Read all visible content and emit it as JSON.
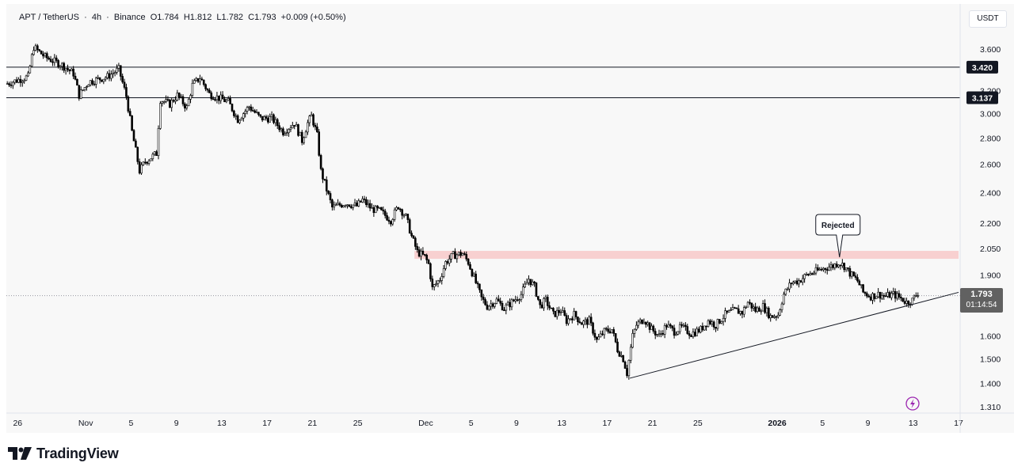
{
  "header": {
    "symbol": "APT / TetherUS",
    "interval": "4h",
    "exchange": "Binance",
    "open": "O1.784",
    "high": "H1.812",
    "low": "L1.782",
    "close": "C1.793",
    "change": "+0.009 (+0.50%)",
    "separator": "·"
  },
  "currency_button": "USDT",
  "last_price": "1.793",
  "countdown": "01:14:54",
  "brand": "TradingView",
  "annotation": "Rejected",
  "colors": {
    "up": "#000000",
    "down": "#000000",
    "zone_fill": "#f8c9c9",
    "background": "#f8f8f8",
    "price_tag": "#616161",
    "level_tag": "#131722",
    "axis_text": "#131722",
    "accent_icon": "#9c27b0"
  },
  "chart_data": {
    "type": "candlestick",
    "symbol": "APT / TetherUS",
    "interval": "4h",
    "exchange": "Binance",
    "y_scale": "log",
    "ylim": [
      1.28,
      3.85
    ],
    "y_ticks": [
      3.6,
      3.2,
      3.0,
      2.8,
      2.6,
      2.4,
      2.2,
      2.05,
      1.9,
      1.6,
      1.5,
      1.4,
      1.31
    ],
    "y_tick_labels": [
      "3.600",
      "3.200",
      "3.000",
      "2.800",
      "2.600",
      "2.400",
      "2.200",
      "2.050",
      "1.900",
      "1.600",
      "1.500",
      "1.400",
      "1.310"
    ],
    "x_ticks": [
      {
        "date": "2025-10-26",
        "label": "26",
        "bold": false
      },
      {
        "date": "2025-11-01",
        "label": "Nov",
        "bold": false
      },
      {
        "date": "2025-11-05",
        "label": "5",
        "bold": false
      },
      {
        "date": "2025-11-09",
        "label": "9",
        "bold": false
      },
      {
        "date": "2025-11-13",
        "label": "13",
        "bold": false
      },
      {
        "date": "2025-11-17",
        "label": "17",
        "bold": false
      },
      {
        "date": "2025-11-21",
        "label": "21",
        "bold": false
      },
      {
        "date": "2025-11-25",
        "label": "25",
        "bold": false
      },
      {
        "date": "2025-12-01",
        "label": "Dec",
        "bold": false
      },
      {
        "date": "2025-12-05",
        "label": "5",
        "bold": false
      },
      {
        "date": "2025-12-09",
        "label": "9",
        "bold": false
      },
      {
        "date": "2025-12-13",
        "label": "13",
        "bold": false
      },
      {
        "date": "2025-12-17",
        "label": "17",
        "bold": false
      },
      {
        "date": "2025-12-21",
        "label": "21",
        "bold": false
      },
      {
        "date": "2025-12-25",
        "label": "25",
        "bold": false
      },
      {
        "date": "2026-01-01",
        "label": "2026",
        "bold": true
      },
      {
        "date": "2026-01-05",
        "label": "5",
        "bold": false
      },
      {
        "date": "2026-01-09",
        "label": "9",
        "bold": false
      },
      {
        "date": "2026-01-13",
        "label": "13",
        "bold": false
      },
      {
        "date": "2026-01-17",
        "label": "17",
        "bold": false
      }
    ],
    "x_range": [
      "2025-10-25T00:00",
      "2026-01-17T00:00"
    ],
    "candle_interval_hours": 4,
    "price_path": [
      [
        "2025-10-25T00:00",
        3.26
      ],
      [
        "2025-10-27T00:00",
        3.33
      ],
      [
        "2025-10-27T12:00",
        3.62
      ],
      [
        "2025-10-28T12:00",
        3.52
      ],
      [
        "2025-10-30T00:00",
        3.44
      ],
      [
        "2025-10-31T00:00",
        3.36
      ],
      [
        "2025-10-31T12:00",
        3.16
      ],
      [
        "2025-11-01T08:00",
        3.28
      ],
      [
        "2025-11-03T00:00",
        3.33
      ],
      [
        "2025-11-04T00:00",
        3.4
      ],
      [
        "2025-11-04T16:00",
        3.15
      ],
      [
        "2025-11-05T04:00",
        2.85
      ],
      [
        "2025-11-05T20:00",
        2.55
      ],
      [
        "2025-11-06T08:00",
        2.62
      ],
      [
        "2025-11-07T08:00",
        2.68
      ],
      [
        "2025-11-07T16:00",
        3.12
      ],
      [
        "2025-11-08T12:00",
        3.08
      ],
      [
        "2025-11-09T04:00",
        3.16
      ],
      [
        "2025-11-10T00:00",
        3.05
      ],
      [
        "2025-11-10T12:00",
        3.25
      ],
      [
        "2025-11-11T04:00",
        3.32
      ],
      [
        "2025-11-12T00:00",
        3.17
      ],
      [
        "2025-11-13T16:00",
        3.1
      ],
      [
        "2025-11-14T12:00",
        2.95
      ],
      [
        "2025-11-15T12:00",
        3.06
      ],
      [
        "2025-11-16T12:00",
        2.96
      ],
      [
        "2025-11-17T12:00",
        2.96
      ],
      [
        "2025-11-18T12:00",
        2.85
      ],
      [
        "2025-11-19T12:00",
        2.92
      ],
      [
        "2025-11-20T04:00",
        2.78
      ],
      [
        "2025-11-20T16:00",
        2.92
      ],
      [
        "2025-11-21T00:00",
        2.98
      ],
      [
        "2025-11-21T12:00",
        2.82
      ],
      [
        "2025-11-21T20:00",
        2.55
      ],
      [
        "2025-11-22T08:00",
        2.42
      ],
      [
        "2025-11-22T20:00",
        2.3
      ],
      [
        "2025-11-24T00:00",
        2.33
      ],
      [
        "2025-11-25T00:00",
        2.31
      ],
      [
        "2025-11-25T12:00",
        2.35
      ],
      [
        "2025-11-26T08:00",
        2.29
      ],
      [
        "2025-11-27T00:00",
        2.28
      ],
      [
        "2025-11-28T00:00",
        2.22
      ],
      [
        "2025-11-28T16:00",
        2.31
      ],
      [
        "2025-11-29T08:00",
        2.24
      ],
      [
        "2025-11-29T20:00",
        2.12
      ],
      [
        "2025-11-30T08:00",
        2.03
      ],
      [
        "2025-12-01T00:00",
        2.0
      ],
      [
        "2025-12-01T08:00",
        1.96
      ],
      [
        "2025-12-01T16:00",
        1.83
      ],
      [
        "2025-12-02T08:00",
        1.88
      ],
      [
        "2025-12-02T20:00",
        1.97
      ],
      [
        "2025-12-03T12:00",
        2.01
      ],
      [
        "2025-12-04T08:00",
        2.02
      ],
      [
        "2025-12-04T20:00",
        1.97
      ],
      [
        "2025-12-05T12:00",
        1.86
      ],
      [
        "2025-12-06T00:00",
        1.78
      ],
      [
        "2025-12-06T12:00",
        1.74
      ],
      [
        "2025-12-07T08:00",
        1.77
      ],
      [
        "2025-12-08T00:00",
        1.73
      ],
      [
        "2025-12-08T16:00",
        1.76
      ],
      [
        "2025-12-09T12:00",
        1.8
      ],
      [
        "2025-12-10T04:00",
        1.88
      ],
      [
        "2025-12-10T16:00",
        1.84
      ],
      [
        "2025-12-11T04:00",
        1.74
      ],
      [
        "2025-12-11T16:00",
        1.77
      ],
      [
        "2025-12-12T08:00",
        1.7
      ],
      [
        "2025-12-13T00:00",
        1.72
      ],
      [
        "2025-12-13T12:00",
        1.67
      ],
      [
        "2025-12-14T04:00",
        1.7
      ],
      [
        "2025-12-14T20:00",
        1.66
      ],
      [
        "2025-12-15T12:00",
        1.67
      ],
      [
        "2025-12-16T04:00",
        1.58
      ],
      [
        "2025-12-16T20:00",
        1.62
      ],
      [
        "2025-12-17T12:00",
        1.63
      ],
      [
        "2025-12-18T00:00",
        1.54
      ],
      [
        "2025-12-18T12:00",
        1.5
      ],
      [
        "2025-12-18T20:00",
        1.44
      ],
      [
        "2025-12-19T08:00",
        1.6
      ],
      [
        "2025-12-19T16:00",
        1.65
      ],
      [
        "2025-12-20T08:00",
        1.68
      ],
      [
        "2025-12-21T00:00",
        1.63
      ],
      [
        "2025-12-21T16:00",
        1.6
      ],
      [
        "2025-12-22T08:00",
        1.65
      ],
      [
        "2025-12-23T00:00",
        1.62
      ],
      [
        "2025-12-23T16:00",
        1.64
      ],
      [
        "2025-12-24T12:00",
        1.61
      ],
      [
        "2025-12-25T08:00",
        1.63
      ],
      [
        "2025-12-26T00:00",
        1.67
      ],
      [
        "2025-12-26T16:00",
        1.65
      ],
      [
        "2025-12-27T12:00",
        1.7
      ],
      [
        "2025-12-28T08:00",
        1.72
      ],
      [
        "2025-12-29T00:00",
        1.71
      ],
      [
        "2025-12-29T12:00",
        1.76
      ],
      [
        "2025-12-30T04:00",
        1.72
      ],
      [
        "2025-12-30T20:00",
        1.74
      ],
      [
        "2025-12-31T12:00",
        1.69
      ],
      [
        "2026-01-01T04:00",
        1.7
      ],
      [
        "2026-01-01T16:00",
        1.8
      ],
      [
        "2026-01-02T08:00",
        1.86
      ],
      [
        "2026-01-03T00:00",
        1.87
      ],
      [
        "2026-01-03T16:00",
        1.9
      ],
      [
        "2026-01-04T12:00",
        1.92
      ],
      [
        "2026-01-05T08:00",
        1.94
      ],
      [
        "2026-01-06T00:00",
        1.95
      ],
      [
        "2026-01-06T12:00",
        1.97
      ],
      [
        "2026-01-07T00:00",
        1.95
      ],
      [
        "2026-01-07T12:00",
        1.91
      ],
      [
        "2026-01-08T04:00",
        1.87
      ],
      [
        "2026-01-08T16:00",
        1.81
      ],
      [
        "2026-01-09T08:00",
        1.79
      ],
      [
        "2026-01-10T00:00",
        1.8
      ],
      [
        "2026-01-10T16:00",
        1.79
      ],
      [
        "2026-01-11T08:00",
        1.8
      ],
      [
        "2026-01-12T00:00",
        1.78
      ],
      [
        "2026-01-12T12:00",
        1.76
      ],
      [
        "2026-01-13T00:00",
        1.77
      ],
      [
        "2026-01-13T08:00",
        1.793
      ]
    ],
    "horizontal_levels": [
      {
        "price": 3.42,
        "label": "3.420"
      },
      {
        "price": 3.137,
        "label": "3.137"
      }
    ],
    "resistance_zone": {
      "from": "2025-11-30T00:00",
      "to": "2026-01-17T00:00",
      "low": 1.99,
      "high": 2.035
    },
    "trendline": {
      "from": [
        "2025-12-19T00:00",
        1.42
      ],
      "to": [
        "2026-01-17T00:00",
        1.81
      ]
    },
    "annotation": {
      "text": "Rejected",
      "at": [
        "2026-01-06T12:00",
        1.99
      ]
    },
    "last_price": 1.793,
    "countdown": "01:14:54"
  }
}
